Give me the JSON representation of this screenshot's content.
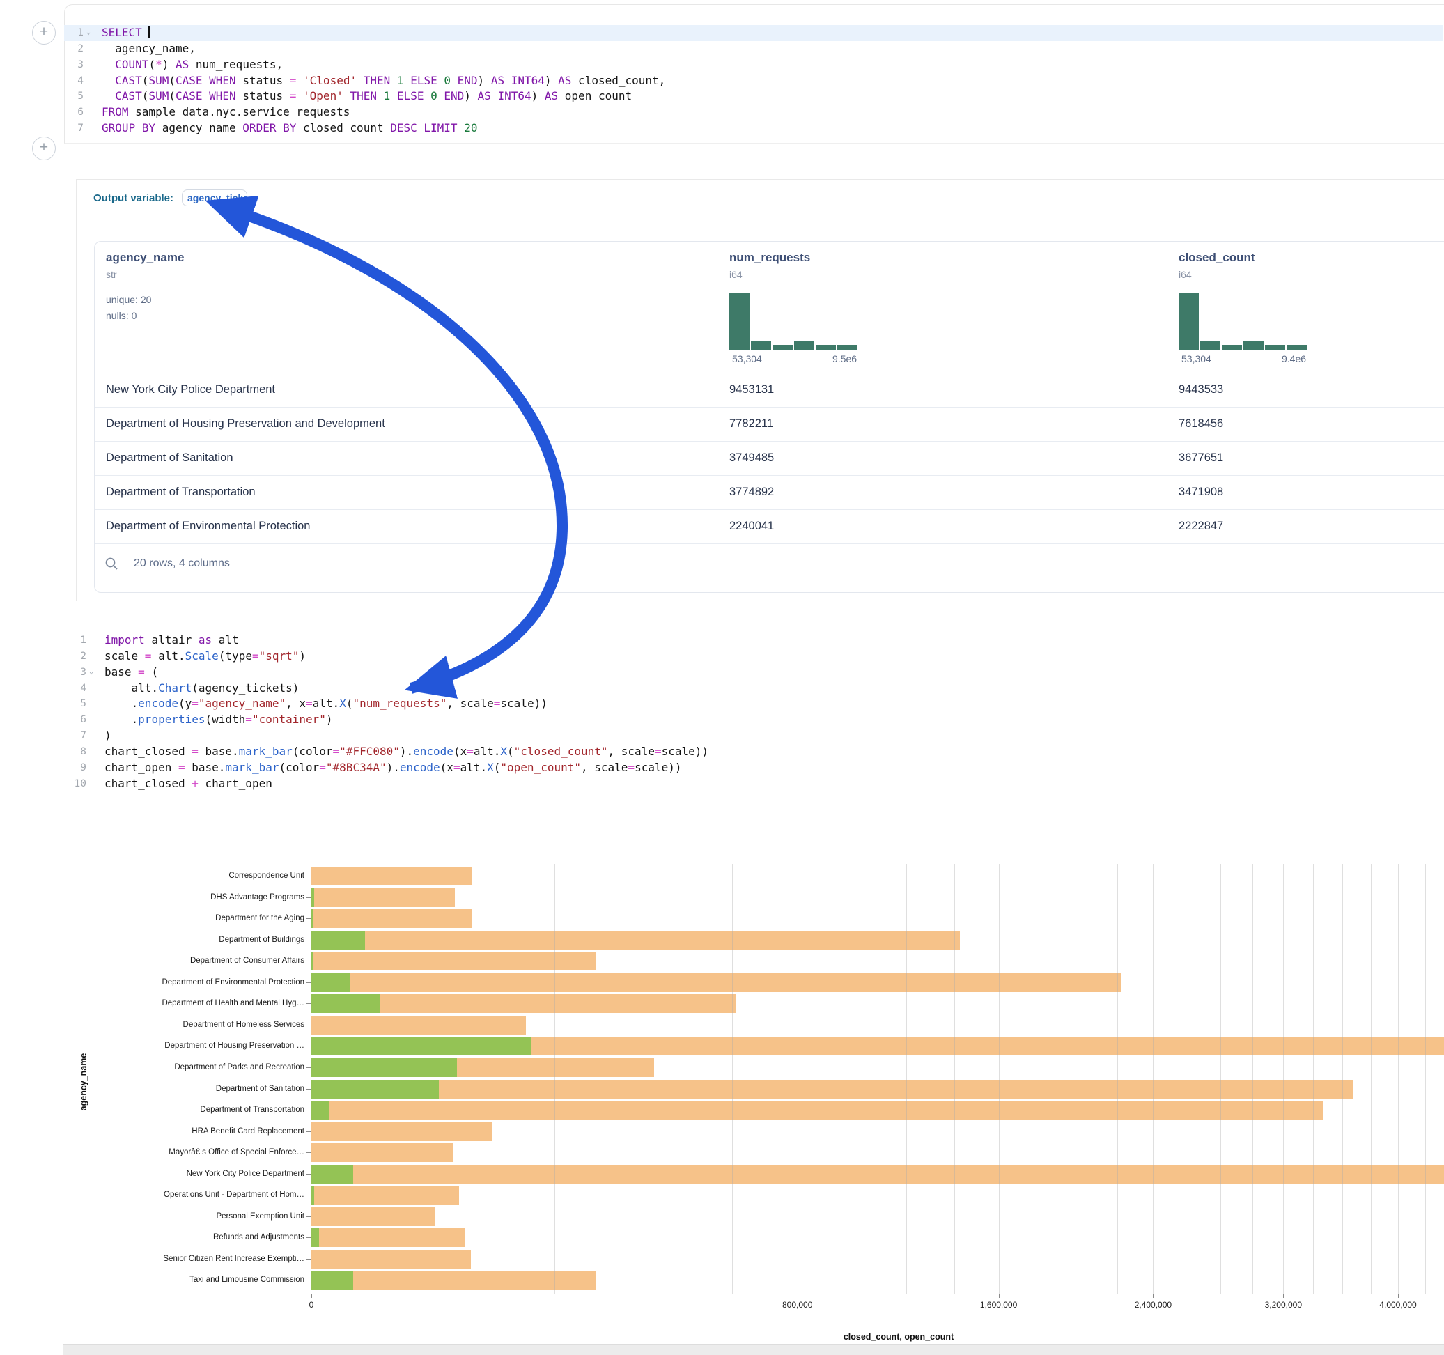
{
  "colors": {
    "closed_bar": "#F6C289",
    "open_bar": "#94C355",
    "hist": "#3e7a68",
    "arrow": "#2356D9",
    "active_line": "#e9f2fc"
  },
  "buttons": {
    "add_cell_top": "+",
    "add_cell_mid": "+"
  },
  "sql_editor": {
    "lines": [
      {
        "n": "1",
        "fold": true,
        "active": true,
        "tokens": [
          [
            "kw",
            "SELECT"
          ],
          [
            "pl",
            " "
          ],
          [
            "cursor",
            ""
          ]
        ]
      },
      {
        "n": "2",
        "tokens": [
          [
            "pl",
            "  agency_name,"
          ]
        ]
      },
      {
        "n": "3",
        "tokens": [
          [
            "pl",
            "  "
          ],
          [
            "kw",
            "COUNT"
          ],
          [
            "pl",
            "("
          ],
          [
            "op",
            "*"
          ],
          [
            "pl",
            ") "
          ],
          [
            "kw",
            "AS"
          ],
          [
            "pl",
            " num_requests,"
          ]
        ]
      },
      {
        "n": "4",
        "tokens": [
          [
            "pl",
            "  "
          ],
          [
            "kw",
            "CAST"
          ],
          [
            "pl",
            "("
          ],
          [
            "kw",
            "SUM"
          ],
          [
            "pl",
            "("
          ],
          [
            "kw",
            "CASE"
          ],
          [
            "pl",
            " "
          ],
          [
            "kw",
            "WHEN"
          ],
          [
            "pl",
            " status "
          ],
          [
            "op",
            "="
          ],
          [
            "pl",
            " "
          ],
          [
            "str",
            "'Closed'"
          ],
          [
            "pl",
            " "
          ],
          [
            "kw",
            "THEN"
          ],
          [
            "pl",
            " "
          ],
          [
            "num",
            "1"
          ],
          [
            "pl",
            " "
          ],
          [
            "kw",
            "ELSE"
          ],
          [
            "pl",
            " "
          ],
          [
            "num",
            "0"
          ],
          [
            "pl",
            " "
          ],
          [
            "kw",
            "END"
          ],
          [
            "pl",
            ") "
          ],
          [
            "kw",
            "AS"
          ],
          [
            "pl",
            " "
          ],
          [
            "kw",
            "INT64"
          ],
          [
            "pl",
            ") "
          ],
          [
            "kw",
            "AS"
          ],
          [
            "pl",
            " closed_count,"
          ]
        ]
      },
      {
        "n": "5",
        "tokens": [
          [
            "pl",
            "  "
          ],
          [
            "kw",
            "CAST"
          ],
          [
            "pl",
            "("
          ],
          [
            "kw",
            "SUM"
          ],
          [
            "pl",
            "("
          ],
          [
            "kw",
            "CASE"
          ],
          [
            "pl",
            " "
          ],
          [
            "kw",
            "WHEN"
          ],
          [
            "pl",
            " status "
          ],
          [
            "op",
            "="
          ],
          [
            "pl",
            " "
          ],
          [
            "str",
            "'Open'"
          ],
          [
            "pl",
            " "
          ],
          [
            "kw",
            "THEN"
          ],
          [
            "pl",
            " "
          ],
          [
            "num",
            "1"
          ],
          [
            "pl",
            " "
          ],
          [
            "kw",
            "ELSE"
          ],
          [
            "pl",
            " "
          ],
          [
            "num",
            "0"
          ],
          [
            "pl",
            " "
          ],
          [
            "kw",
            "END"
          ],
          [
            "pl",
            ") "
          ],
          [
            "kw",
            "AS"
          ],
          [
            "pl",
            " "
          ],
          [
            "kw",
            "INT64"
          ],
          [
            "pl",
            ") "
          ],
          [
            "kw",
            "AS"
          ],
          [
            "pl",
            " open_count"
          ]
        ]
      },
      {
        "n": "6",
        "tokens": [
          [
            "kw",
            "FROM"
          ],
          [
            "pl",
            " sample_data.nyc.service_requests"
          ]
        ]
      },
      {
        "n": "7",
        "tokens": [
          [
            "kw",
            "GROUP BY"
          ],
          [
            "pl",
            " agency_name "
          ],
          [
            "kw",
            "ORDER BY"
          ],
          [
            "pl",
            " closed_count "
          ],
          [
            "kw",
            "DESC"
          ],
          [
            "pl",
            " "
          ],
          [
            "kw",
            "LIMIT"
          ],
          [
            "pl",
            " "
          ],
          [
            "num",
            "20"
          ]
        ]
      }
    ]
  },
  "output": {
    "label": "Output variable:",
    "badge": "agency_tickets",
    "footer": "20 rows, 4 columns"
  },
  "table": {
    "columns": [
      {
        "name": "agency_name",
        "type": "str",
        "stats": [
          "unique: 20",
          "nulls: 0"
        ]
      },
      {
        "name": "num_requests",
        "type": "i64",
        "hist_heights": [
          1,
          0.16,
          0.08,
          0.16,
          0.09,
          0.09
        ],
        "range_left": "53,304",
        "range_right": "9.5e6"
      },
      {
        "name": "closed_count",
        "type": "i64",
        "hist_heights": [
          1,
          0.16,
          0.09,
          0.16,
          0.09,
          0.09
        ],
        "range_left": "53,304",
        "range_right": "9.4e6"
      }
    ],
    "rows": [
      {
        "agency_name": "New York City Police Department",
        "num_requests": "9453131",
        "closed_count": "9443533"
      },
      {
        "agency_name": "Department of Housing Preservation and Development",
        "num_requests": "7782211",
        "closed_count": "7618456"
      },
      {
        "agency_name": "Department of Sanitation",
        "num_requests": "3749485",
        "closed_count": "3677651"
      },
      {
        "agency_name": "Department of Transportation",
        "num_requests": "3774892",
        "closed_count": "3471908"
      },
      {
        "agency_name": "Department of Environmental Protection",
        "num_requests": "2240041",
        "closed_count": "2222847"
      }
    ]
  },
  "python_editor": {
    "lines": [
      {
        "n": "1",
        "tokens": [
          [
            "kw",
            "import"
          ],
          [
            "pl",
            " altair "
          ],
          [
            "kw",
            "as"
          ],
          [
            "pl",
            " alt"
          ]
        ]
      },
      {
        "n": "2",
        "tokens": [
          [
            "pl",
            "scale "
          ],
          [
            "op",
            "="
          ],
          [
            "pl",
            " alt."
          ],
          [
            "fn",
            "Scale"
          ],
          [
            "pl",
            "(type"
          ],
          [
            "op",
            "="
          ],
          [
            "str",
            "\"sqrt\""
          ],
          [
            "pl",
            ")"
          ]
        ]
      },
      {
        "n": "3",
        "fold": true,
        "tokens": [
          [
            "pl",
            "base "
          ],
          [
            "op",
            "="
          ],
          [
            "pl",
            " ("
          ]
        ]
      },
      {
        "n": "4",
        "tokens": [
          [
            "pl",
            "    alt."
          ],
          [
            "fn",
            "Chart"
          ],
          [
            "pl",
            "(agency_tickets)"
          ]
        ]
      },
      {
        "n": "5",
        "tokens": [
          [
            "pl",
            "    ."
          ],
          [
            "fn",
            "encode"
          ],
          [
            "pl",
            "(y"
          ],
          [
            "op",
            "="
          ],
          [
            "str",
            "\"agency_name\""
          ],
          [
            "pl",
            ", x"
          ],
          [
            "op",
            "="
          ],
          [
            "pl",
            "alt."
          ],
          [
            "fn",
            "X"
          ],
          [
            "pl",
            "("
          ],
          [
            "str",
            "\"num_requests\""
          ],
          [
            "pl",
            ", scale"
          ],
          [
            "op",
            "="
          ],
          [
            "pl",
            "scale))"
          ]
        ]
      },
      {
        "n": "6",
        "tokens": [
          [
            "pl",
            "    ."
          ],
          [
            "fn",
            "properties"
          ],
          [
            "pl",
            "(width"
          ],
          [
            "op",
            "="
          ],
          [
            "str",
            "\"container\""
          ],
          [
            "pl",
            ")"
          ]
        ]
      },
      {
        "n": "7",
        "tokens": [
          [
            "pl",
            ")"
          ]
        ]
      },
      {
        "n": "8",
        "tokens": [
          [
            "pl",
            "chart_closed "
          ],
          [
            "op",
            "="
          ],
          [
            "pl",
            " base."
          ],
          [
            "fn",
            "mark_bar"
          ],
          [
            "pl",
            "(color"
          ],
          [
            "op",
            "="
          ],
          [
            "str",
            "\"#FFC080\""
          ],
          [
            "pl",
            ")."
          ],
          [
            "fn",
            "encode"
          ],
          [
            "pl",
            "(x"
          ],
          [
            "op",
            "="
          ],
          [
            "pl",
            "alt."
          ],
          [
            "fn",
            "X"
          ],
          [
            "pl",
            "("
          ],
          [
            "str",
            "\"closed_count\""
          ],
          [
            "pl",
            ", scale"
          ],
          [
            "op",
            "="
          ],
          [
            "pl",
            "scale))"
          ]
        ]
      },
      {
        "n": "9",
        "tokens": [
          [
            "pl",
            "chart_open "
          ],
          [
            "op",
            "="
          ],
          [
            "pl",
            " base."
          ],
          [
            "fn",
            "mark_bar"
          ],
          [
            "pl",
            "(color"
          ],
          [
            "op",
            "="
          ],
          [
            "str",
            "\"#8BC34A\""
          ],
          [
            "pl",
            ")."
          ],
          [
            "fn",
            "encode"
          ],
          [
            "pl",
            "(x"
          ],
          [
            "op",
            "="
          ],
          [
            "pl",
            "alt."
          ],
          [
            "fn",
            "X"
          ],
          [
            "pl",
            "("
          ],
          [
            "str",
            "\"open_count\""
          ],
          [
            "pl",
            ", scale"
          ],
          [
            "op",
            "="
          ],
          [
            "pl",
            "scale))"
          ]
        ]
      },
      {
        "n": "10",
        "tokens": [
          [
            "pl",
            "chart_closed "
          ],
          [
            "op",
            "+"
          ],
          [
            "pl",
            " chart_open"
          ]
        ]
      }
    ]
  },
  "chart_data": {
    "type": "bar",
    "orientation": "horizontal",
    "scale": "sqrt",
    "grid": true,
    "legend": "none",
    "xlabel": "closed_count, open_count",
    "ylabel": "agency_name",
    "x_ticks": [
      0,
      800000,
      1600000,
      2400000,
      3200000,
      4000000
    ],
    "x_tick_labels": [
      "0",
      "800,000",
      "1,600,000",
      "2,400,000",
      "3,200,000",
      "4,000,000"
    ],
    "gridline_step": 200000,
    "x_visible_max": 4350000,
    "categories": [
      "Correspondence Unit",
      "DHS Advantage Programs",
      "Department for the Aging",
      "Department of Buildings",
      "Department of Consumer Affairs",
      "Department of Environmental Protection",
      "Department of Health and Mental Hyg…",
      "Department of Homeless Services",
      "Department of Housing Preservation …",
      "Department of Parks and Recreation",
      "Department of Sanitation",
      "Department of Transportation",
      "HRA Benefit Card Replacement",
      "Mayorâ€ s Office of Special Enforce…",
      "New York City Police Department",
      "Operations Unit - Department of Hom…",
      "Personal Exemption Unit",
      "Refunds and Adjustments",
      "Senior Citizen Rent Increase Exempti…",
      "Taxi and Limousine Commission"
    ],
    "series": [
      {
        "name": "closed_count",
        "color": "#F6C289",
        "values": [
          88000,
          70000,
          87000,
          1425000,
          275000,
          2222847,
          612000,
          156000,
          7618456,
          398000,
          3677651,
          3471908,
          111000,
          67700,
          9443533,
          73900,
          52000,
          80300,
          86200,
          273600
        ]
      },
      {
        "name": "open_count",
        "color": "#94C355",
        "values": [
          0,
          25,
          15,
          9800,
          8,
          5000,
          16000,
          0,
          163755,
          71800,
          55000,
          1100,
          0,
          0,
          5900,
          26,
          0,
          200,
          0,
          5900
        ]
      }
    ]
  }
}
